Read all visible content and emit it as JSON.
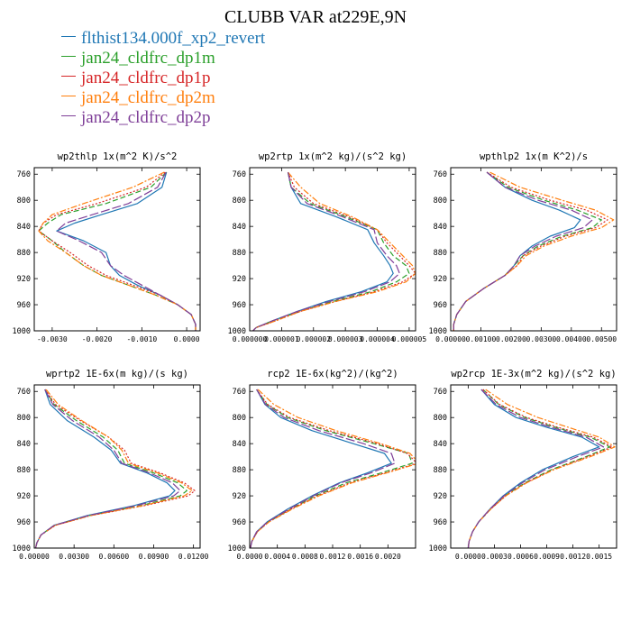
{
  "figure_title": "CLUBB VAR at229E,9N",
  "legend": [
    {
      "label": "flthist134.000f_xp2_revert",
      "color": "#1f77b4",
      "dash": "solid"
    },
    {
      "label": "jan24_cldfrc_dp1m",
      "color": "#2ca02c",
      "dash": "dashed"
    },
    {
      "label": "jan24_cldfrc_dp1p",
      "color": "#d62728",
      "dash": "dotted"
    },
    {
      "label": "jan24_cldfrc_dp2m",
      "color": "#ff7f0e",
      "dash": "dashdot"
    },
    {
      "label": "jan24_cldfrc_dp2p",
      "color": "#7f3f98",
      "dash": "longdash"
    }
  ],
  "chart_data": [
    {
      "type": "line",
      "title": "wp2thlp  1x(m^2 K)/s^2",
      "xlim": [
        -0.0034,
        0.0003
      ],
      "ylim": [
        1000,
        750
      ],
      "y_inverted": true,
      "xticks": [
        -0.003,
        -0.002,
        -0.001,
        0.0
      ],
      "xtick_labels": [
        "-0.0030",
        "-0.0020",
        "-0.0010",
        "0.0000"
      ],
      "yticks": [
        760,
        800,
        840,
        880,
        920,
        960,
        1000
      ],
      "ytick_labels": [
        "760",
        "800",
        "840",
        "880",
        "920",
        "960",
        "1000"
      ],
      "y": [
        757,
        780,
        805,
        822,
        835,
        847,
        862,
        880,
        900,
        915,
        930,
        945,
        960,
        975,
        990,
        1000
      ],
      "series": [
        {
          "values": [
            -0.00045,
            -0.00055,
            -0.0011,
            -0.0019,
            -0.0025,
            -0.0029,
            -0.0023,
            -0.0018,
            -0.0017,
            -0.0015,
            -0.0011,
            -0.0006,
            -0.0002,
            0.0001,
            0.0002,
            0.0002
          ]
        },
        {
          "values": [
            -0.00045,
            -0.0008,
            -0.0018,
            -0.0028,
            -0.0031,
            -0.0033,
            -0.003,
            -0.0027,
            -0.0023,
            -0.0019,
            -0.0013,
            -0.0007,
            -0.0002,
            0.0001,
            0.0002,
            0.0002
          ]
        },
        {
          "values": [
            -0.00048,
            -0.0009,
            -0.002,
            -0.0029,
            -0.0032,
            -0.0033,
            -0.003,
            -0.0026,
            -0.0022,
            -0.0018,
            -0.0012,
            -0.0006,
            -0.0002,
            0.0001,
            0.0002,
            0.0002
          ]
        },
        {
          "values": [
            -0.0005,
            -0.0012,
            -0.0023,
            -0.003,
            -0.0032,
            -0.0033,
            -0.0031,
            -0.0027,
            -0.0023,
            -0.0019,
            -0.0013,
            -0.0007,
            -0.0002,
            0.0001,
            0.0002,
            0.0002
          ]
        },
        {
          "values": [
            -0.00046,
            -0.00065,
            -0.0013,
            -0.0021,
            -0.0027,
            -0.0029,
            -0.0024,
            -0.0019,
            -0.0017,
            -0.0014,
            -0.001,
            -0.0006,
            -0.0002,
            0.0001,
            0.0002,
            0.0002
          ]
        }
      ]
    },
    {
      "type": "line",
      "title": "wp2rtp  1x(m^2 kg)/(s^2 kg)",
      "xlim": [
        0.0,
        5.2e-06
      ],
      "ylim": [
        1000,
        750
      ],
      "y_inverted": true,
      "xticks": [
        0.0,
        1e-06,
        2e-06,
        3e-06,
        4e-06,
        5e-06
      ],
      "xtick_labels": [
        "0.000000",
        "0.000001",
        "0.000002",
        "0.000003",
        "0.000004",
        "0.000005"
      ],
      "yticks": [
        760,
        800,
        840,
        880,
        920,
        960,
        1000
      ],
      "ytick_labels": [
        "760",
        "800",
        "840",
        "880",
        "920",
        "960",
        "1000"
      ],
      "y": [
        757,
        780,
        805,
        825,
        845,
        865,
        885,
        900,
        912,
        925,
        940,
        955,
        970,
        985,
        995,
        1000
      ],
      "series": [
        {
          "values": [
            1.2e-06,
            1.3e-06,
            1.6e-06,
            2.7e-06,
            3.7e-06,
            3.9e-06,
            4.2e-06,
            4.4e-06,
            4.5e-06,
            4.3e-06,
            3.5e-06,
            2.4e-06,
            1.5e-06,
            7e-07,
            2e-07,
            1e-07
          ]
        },
        {
          "values": [
            1.2e-06,
            1.3e-06,
            1.9e-06,
            3e-06,
            4e-06,
            4.2e-06,
            4.5e-06,
            4.9e-06,
            5e-06,
            4.6e-06,
            3.8e-06,
            2.6e-06,
            1.6e-06,
            7e-07,
            2e-07,
            1e-07
          ]
        },
        {
          "values": [
            1.2e-06,
            1.4e-06,
            2e-06,
            3.1e-06,
            4e-06,
            4.3e-06,
            4.7e-06,
            5e-06,
            5.2e-06,
            4.8e-06,
            3.9e-06,
            2.7e-06,
            1.6e-06,
            8e-07,
            2e-07,
            1e-07
          ]
        },
        {
          "values": [
            1.2e-06,
            1.6e-06,
            2.2e-06,
            3.2e-06,
            4e-06,
            4.4e-06,
            4.8e-06,
            5.1e-06,
            5.2e-06,
            4.9e-06,
            4e-06,
            2.7e-06,
            1.6e-06,
            8e-07,
            2e-07,
            1e-07
          ]
        },
        {
          "values": [
            1.2e-06,
            1.3e-06,
            1.8e-06,
            2.9e-06,
            3.9e-06,
            4e-06,
            4.3e-06,
            4.6e-06,
            4.7e-06,
            4.4e-06,
            3.6e-06,
            2.5e-06,
            1.5e-06,
            7e-07,
            2e-07,
            1e-07
          ]
        }
      ]
    },
    {
      "type": "line",
      "title": "wpthlp2  1x(m K^2)/s",
      "xlim": [
        0.0,
        0.0055
      ],
      "ylim": [
        1000,
        750
      ],
      "y_inverted": true,
      "xticks": [
        0.0,
        0.001,
        0.002,
        0.003,
        0.004,
        0.005
      ],
      "xtick_labels": [
        "0.00000",
        "0.00100",
        "0.00200",
        "0.00300",
        "0.00400",
        "0.00500"
      ],
      "yticks": [
        760,
        800,
        840,
        880,
        920,
        960,
        1000
      ],
      "ytick_labels": [
        "760",
        "800",
        "840",
        "880",
        "920",
        "960",
        "1000"
      ],
      "y": [
        757,
        780,
        800,
        815,
        830,
        842,
        855,
        870,
        885,
        900,
        915,
        935,
        955,
        975,
        990,
        1000
      ],
      "series": [
        {
          "values": [
            0.0012,
            0.0018,
            0.0027,
            0.0036,
            0.0043,
            0.0041,
            0.0033,
            0.0027,
            0.0023,
            0.0021,
            0.0018,
            0.0011,
            0.0005,
            0.0002,
            0.0001,
            0.0001
          ]
        },
        {
          "values": [
            0.0012,
            0.0019,
            0.0031,
            0.0042,
            0.005,
            0.0047,
            0.0037,
            0.0029,
            0.0024,
            0.0021,
            0.0018,
            0.0011,
            0.0005,
            0.0002,
            0.0001,
            0.0001
          ]
        },
        {
          "values": [
            0.0012,
            0.002,
            0.0033,
            0.0045,
            0.0052,
            0.0048,
            0.0038,
            0.003,
            0.0024,
            0.0022,
            0.0018,
            0.0011,
            0.0005,
            0.0002,
            0.0001,
            0.0001
          ]
        },
        {
          "values": [
            0.0013,
            0.0023,
            0.0037,
            0.0048,
            0.0054,
            0.005,
            0.004,
            0.0031,
            0.0025,
            0.0022,
            0.0018,
            0.0011,
            0.0005,
            0.0002,
            0.0001,
            0.0001
          ]
        },
        {
          "values": [
            0.0012,
            0.0018,
            0.0029,
            0.004,
            0.0047,
            0.0044,
            0.0035,
            0.0028,
            0.0023,
            0.0021,
            0.0018,
            0.0011,
            0.0005,
            0.0002,
            0.0001,
            0.0001
          ]
        }
      ]
    },
    {
      "type": "line",
      "title": "wprtp2  1E-6x(m kg)/(s kg)",
      "xlim": [
        0.0,
        0.0125
      ],
      "ylim": [
        1000,
        750
      ],
      "y_inverted": true,
      "xticks": [
        0.0,
        0.003,
        0.006,
        0.009,
        0.012
      ],
      "xtick_labels": [
        "0.00000",
        "0.00300",
        "0.00600",
        "0.00900",
        "0.01200"
      ],
      "yticks": [
        760,
        800,
        840,
        880,
        920,
        960,
        1000
      ],
      "ytick_labels": [
        "760",
        "800",
        "840",
        "880",
        "920",
        "960",
        "1000"
      ],
      "y": [
        757,
        780,
        805,
        830,
        850,
        870,
        885,
        900,
        912,
        920,
        935,
        950,
        965,
        980,
        992,
        1000
      ],
      "series": [
        {
          "values": [
            0.0008,
            0.0012,
            0.0025,
            0.0045,
            0.0058,
            0.0065,
            0.0085,
            0.01,
            0.0106,
            0.0102,
            0.0075,
            0.004,
            0.0015,
            0.0005,
            0.0002,
            0.0001
          ]
        },
        {
          "values": [
            0.0008,
            0.0015,
            0.0032,
            0.0052,
            0.0063,
            0.0068,
            0.009,
            0.0108,
            0.0115,
            0.011,
            0.008,
            0.0042,
            0.0015,
            0.0005,
            0.0002,
            0.0001
          ]
        },
        {
          "values": [
            0.0008,
            0.0016,
            0.0035,
            0.0056,
            0.0068,
            0.0073,
            0.0095,
            0.0113,
            0.0121,
            0.0116,
            0.0083,
            0.0043,
            0.0016,
            0.0005,
            0.0002,
            0.0001
          ]
        },
        {
          "values": [
            0.0009,
            0.0018,
            0.0036,
            0.0056,
            0.0066,
            0.0071,
            0.0093,
            0.0111,
            0.0119,
            0.0113,
            0.0082,
            0.0043,
            0.0016,
            0.0005,
            0.0002,
            0.0001
          ]
        },
        {
          "values": [
            0.0008,
            0.0014,
            0.0029,
            0.0049,
            0.006,
            0.0066,
            0.0087,
            0.0104,
            0.011,
            0.0105,
            0.0077,
            0.0041,
            0.0015,
            0.0005,
            0.0002,
            0.0001
          ]
        }
      ]
    },
    {
      "type": "line",
      "title": "rcp2  1E-6x(kg^2)/(kg^2)",
      "xlim": [
        0.0,
        0.0024
      ],
      "ylim": [
        1000,
        750
      ],
      "y_inverted": true,
      "xticks": [
        0.0,
        0.0004,
        0.0008,
        0.0012,
        0.0016,
        0.002
      ],
      "xtick_labels": [
        "0.0000",
        "0.0004",
        "0.0008",
        "0.0012",
        "0.0016",
        "0.0020"
      ],
      "yticks": [
        760,
        800,
        840,
        880,
        920,
        960,
        1000
      ],
      "ytick_labels": [
        "760",
        "800",
        "840",
        "880",
        "920",
        "960",
        "1000"
      ],
      "y": [
        757,
        780,
        800,
        820,
        840,
        855,
        870,
        885,
        900,
        920,
        940,
        960,
        975,
        990,
        1000
      ],
      "series": [
        {
          "values": [
            0.0001,
            0.00022,
            0.00045,
            0.0009,
            0.0015,
            0.00195,
            0.00205,
            0.0017,
            0.0013,
            0.0009,
            0.00055,
            0.00025,
            0.0001,
            3e-05,
            1e-05
          ]
        },
        {
          "values": [
            0.0001,
            0.00025,
            0.00055,
            0.0011,
            0.0018,
            0.0023,
            0.00235,
            0.0019,
            0.0014,
            0.00095,
            0.0006,
            0.00027,
            0.00011,
            3e-05,
            1e-05
          ]
        },
        {
          "values": [
            0.0001,
            0.00026,
            0.00058,
            0.00115,
            0.00185,
            0.00228,
            0.00242,
            0.00195,
            0.00145,
            0.00098,
            0.0006,
            0.00027,
            0.00011,
            3e-05,
            1e-05
          ]
        },
        {
          "values": [
            0.00012,
            0.00035,
            0.0007,
            0.00125,
            0.0019,
            0.00232,
            0.00245,
            0.00198,
            0.00148,
            0.001,
            0.00062,
            0.00028,
            0.00011,
            3e-05,
            1e-05
          ]
        },
        {
          "values": [
            0.0001,
            0.00023,
            0.0005,
            0.001,
            0.00165,
            0.00205,
            0.0021,
            0.00175,
            0.00132,
            0.00092,
            0.00057,
            0.00026,
            0.0001,
            3e-05,
            1e-05
          ]
        }
      ]
    },
    {
      "type": "line",
      "title": "wp2rcp  1E-3x(m^2 kg)/(s^2 kg)",
      "xlim": [
        -0.0002,
        0.0017
      ],
      "ylim": [
        1000,
        750
      ],
      "y_inverted": true,
      "xticks": [
        0.0,
        0.0003,
        0.0006,
        0.0009,
        0.0012,
        0.0015
      ],
      "xtick_labels": [
        "0.0000",
        "0.0003",
        "0.0006",
        "0.0009",
        "0.0012",
        "0.0015"
      ],
      "yticks": [
        760,
        800,
        840,
        880,
        920,
        960,
        1000
      ],
      "ytick_labels": [
        "760",
        "800",
        "840",
        "880",
        "920",
        "960",
        "1000"
      ],
      "y": [
        757,
        780,
        800,
        815,
        830,
        845,
        860,
        880,
        900,
        920,
        940,
        960,
        975,
        990,
        1000
      ],
      "series": [
        {
          "values": [
            0.00015,
            0.0003,
            0.00055,
            0.0009,
            0.0013,
            0.0015,
            0.0012,
            0.00085,
            0.0006,
            0.0004,
            0.00025,
            0.00012,
            5e-05,
            1e-05,
            0.0
          ]
        },
        {
          "values": [
            0.00017,
            0.00035,
            0.00065,
            0.001,
            0.0014,
            0.00162,
            0.00135,
            0.00095,
            0.00065,
            0.00042,
            0.00026,
            0.00012,
            5e-05,
            1e-05,
            0.0
          ]
        },
        {
          "values": [
            0.00017,
            0.00036,
            0.00067,
            0.00103,
            0.00143,
            0.00165,
            0.00137,
            0.00097,
            0.00066,
            0.00043,
            0.00026,
            0.00012,
            5e-05,
            1e-05,
            0.0
          ]
        },
        {
          "values": [
            0.0002,
            0.00045,
            0.0008,
            0.00115,
            0.0015,
            0.00168,
            0.0014,
            0.00098,
            0.00067,
            0.00043,
            0.00026,
            0.00012,
            5e-05,
            1e-05,
            0.0
          ]
        },
        {
          "values": [
            0.00015,
            0.00032,
            0.0006,
            0.00095,
            0.00135,
            0.00155,
            0.00125,
            0.00088,
            0.00062,
            0.00041,
            0.00025,
            0.00012,
            5e-05,
            1e-05,
            0.0
          ]
        }
      ]
    }
  ]
}
